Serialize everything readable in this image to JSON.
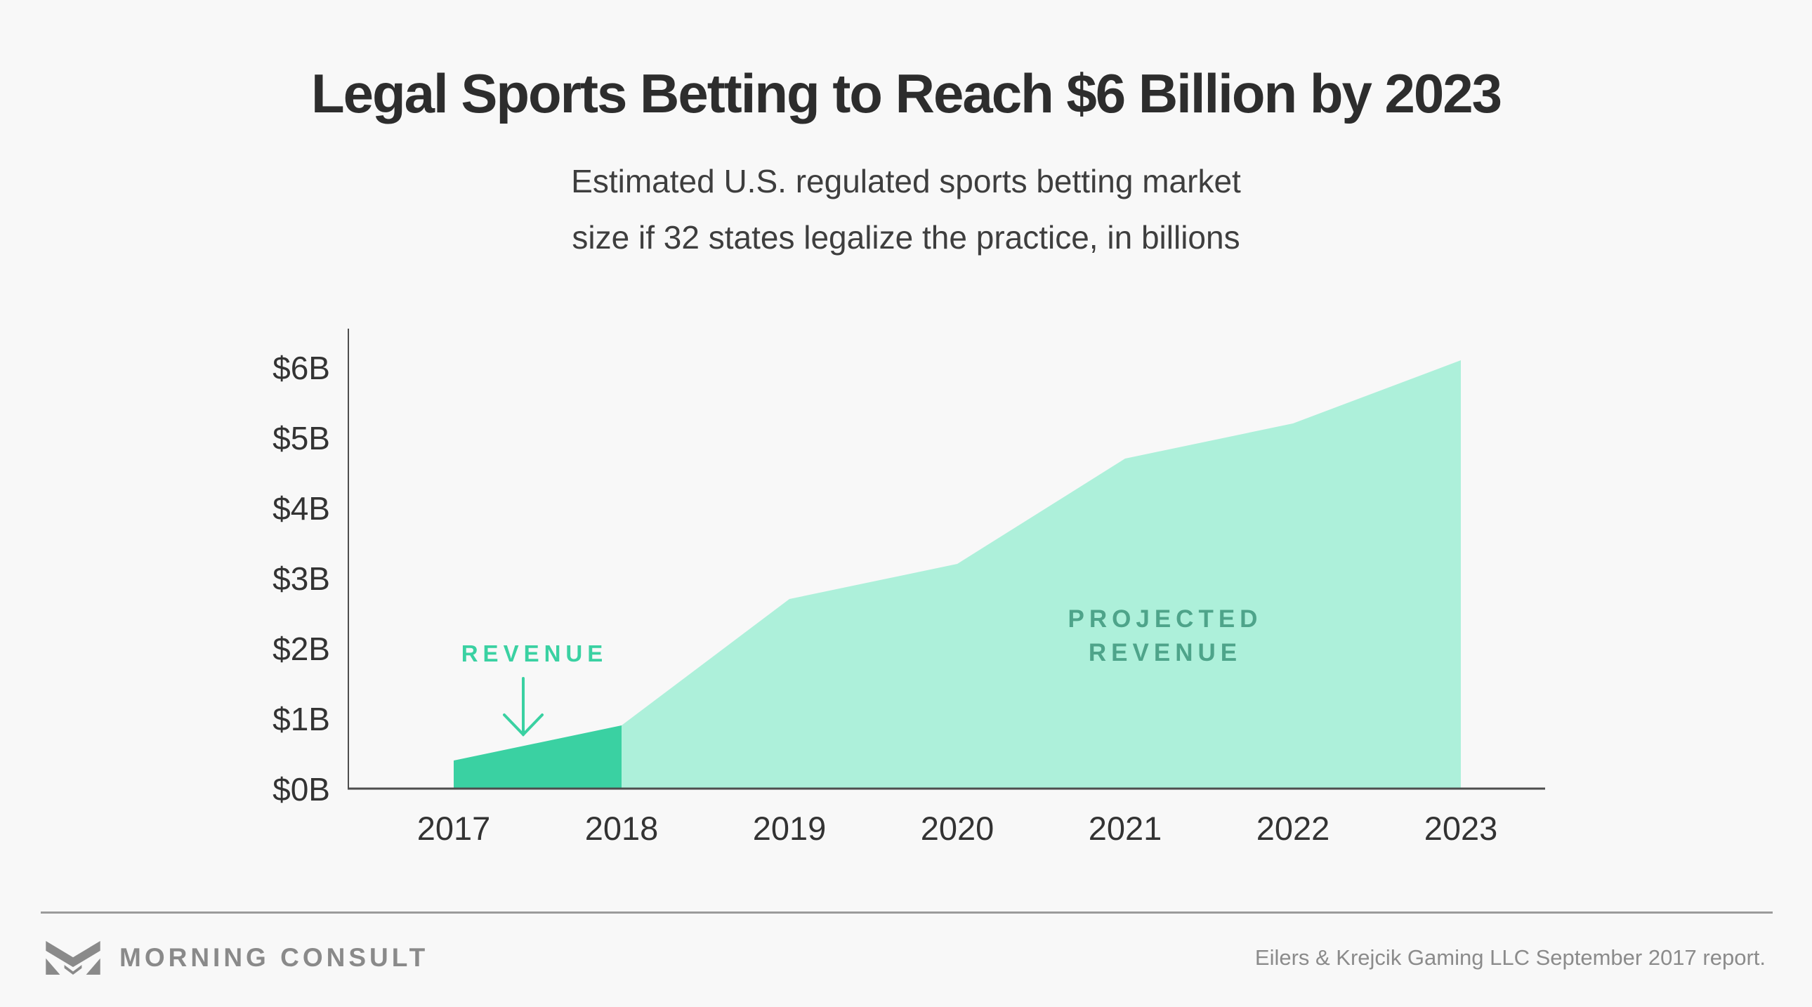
{
  "header": {
    "title": "Legal Sports Betting to Reach $6 Billion by 2023",
    "subtitle": "Estimated U.S. regulated sports betting market\nsize if 32 states legalize the practice, in billions"
  },
  "chart_data": {
    "type": "area",
    "title": "Legal Sports Betting to Reach $6 Billion by 2023",
    "subtitle": "Estimated U.S. regulated sports betting market size if 32 states legalize the practice, in billions",
    "categories": [
      "2017",
      "2018",
      "2019",
      "2020",
      "2021",
      "2022",
      "2023"
    ],
    "values": [
      0.4,
      0.9,
      2.7,
      3.2,
      4.7,
      5.2,
      6.1
    ],
    "actual_through_index": 1,
    "series": [
      {
        "name": "Revenue",
        "categories": [
          "2017",
          "2018"
        ],
        "values": [
          0.4,
          0.9
        ]
      },
      {
        "name": "Projected revenue",
        "categories": [
          "2018",
          "2019",
          "2020",
          "2021",
          "2022",
          "2023"
        ],
        "values": [
          0.9,
          2.7,
          3.2,
          4.7,
          5.2,
          6.1
        ]
      }
    ],
    "xlabel": "",
    "ylabel": "",
    "ylim": [
      0,
      6
    ],
    "y_ticks": [
      "$0B",
      "$1B",
      "$2B",
      "$3B",
      "$4B",
      "$5B",
      "$6B"
    ],
    "grid": false,
    "legend_position": "none",
    "annotations": {
      "actual_label": "REVENUE",
      "projected_label": "PROJECTED\nREVENUE"
    },
    "colors": {
      "actual_fill": "#3ad1a2",
      "projected_fill": "#adf0da",
      "actual_label_color": "#3ad1a2",
      "projected_label_color": "#4ea48a",
      "axis_color": "#4d4d4d"
    }
  },
  "footer": {
    "brand": "MORNING CONSULT",
    "source": "Eilers & Krejcik Gaming LLC September 2017 report."
  }
}
